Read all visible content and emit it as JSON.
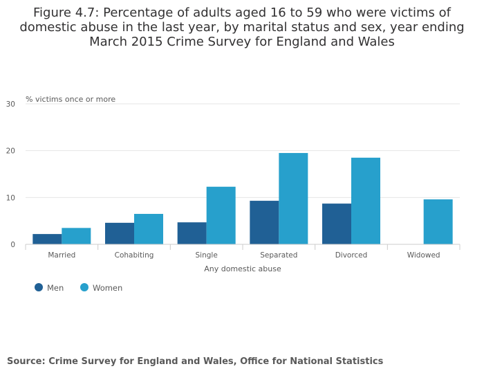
{
  "title_lines": [
    "Figure 4.7: Percentage of adults aged 16 to 59 who were victims of",
    "domestic abuse in the last year, by marital status and sex, year ending",
    "March 2015 Crime Survey for England and Wales"
  ],
  "source": "Source: Crime Survey for England and Wales, Office for National Statistics",
  "colors": {
    "men": "#206095",
    "women": "#27a0cc",
    "grid": "#e6e6e6",
    "axis": "#cccccc"
  },
  "chart_data": {
    "type": "bar",
    "title": "Figure 4.7: Percentage of adults aged 16 to 59 who were victims of domestic abuse in the last year, by marital status and sex, year ending March 2015 Crime Survey for England and Wales",
    "xlabel": "Any domestic abuse",
    "ylabel": "% victims once or more",
    "categories": [
      "Married",
      "Cohabiting",
      "Single",
      "Separated",
      "Divorced",
      "Widowed"
    ],
    "series": [
      {
        "name": "Men",
        "values": [
          2.2,
          4.6,
          4.7,
          9.3,
          8.7,
          null
        ]
      },
      {
        "name": "Women",
        "values": [
          3.5,
          6.5,
          12.3,
          19.5,
          18.5,
          9.6
        ]
      }
    ],
    "ylim": [
      0,
      30
    ],
    "yticks": [
      0,
      10,
      20,
      30
    ],
    "grid": true,
    "legend_position": "bottom-left"
  }
}
